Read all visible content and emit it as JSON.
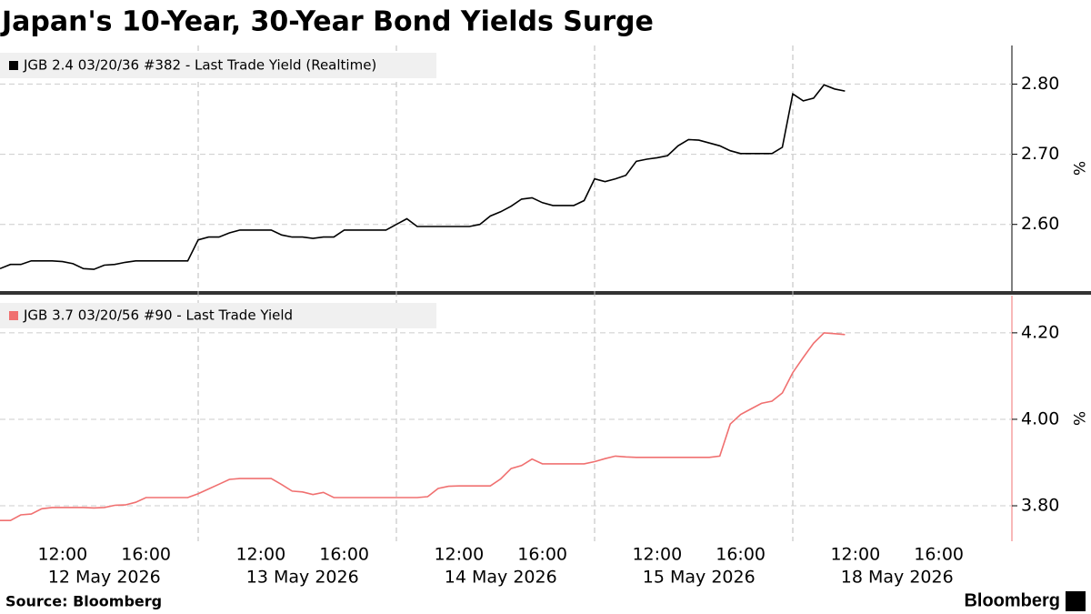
{
  "chart_data": {
    "type": "line",
    "title": "Japan's 10-Year, 30-Year Bond Yields Surge",
    "source": "Source: Bloomberg",
    "brand": "Bloomberg",
    "categories": [
      null,
      null,
      null,
      null,
      null,
      null,
      "12:00",
      null,
      null,
      null,
      null,
      null,
      null,
      null,
      "16:00",
      null,
      null,
      null,
      null,
      null,
      null,
      null,
      null,
      null,
      null,
      "12:00",
      null,
      null,
      null,
      null,
      null,
      null,
      null,
      "16:00",
      null,
      null,
      null,
      null,
      null,
      null,
      null,
      null,
      null,
      null,
      "12:00",
      null,
      null,
      null,
      null,
      null,
      null,
      null,
      "16:00",
      null,
      null,
      null,
      null,
      null,
      null,
      null,
      null,
      null,
      null,
      "12:00",
      null,
      null,
      null,
      null,
      null,
      null,
      null,
      "16:00",
      null,
      null,
      null,
      null,
      null,
      null,
      null,
      null,
      null,
      null,
      "12:00",
      null,
      null,
      null,
      null,
      null,
      null,
      null,
      "16:00",
      null,
      null,
      null,
      null,
      null,
      null,
      null
    ],
    "dates": [
      null,
      null,
      null,
      null,
      null,
      null,
      null,
      null,
      null,
      null,
      "12 May 2026",
      null,
      null,
      null,
      null,
      null,
      null,
      null,
      null,
      null,
      null,
      null,
      null,
      null,
      null,
      null,
      null,
      null,
      null,
      "13 May 2026",
      null,
      null,
      null,
      null,
      null,
      null,
      null,
      null,
      null,
      null,
      null,
      null,
      null,
      null,
      null,
      null,
      null,
      null,
      "14 May 2026",
      null,
      null,
      null,
      null,
      null,
      null,
      null,
      null,
      null,
      null,
      null,
      null,
      null,
      null,
      null,
      null,
      null,
      null,
      "15 May 2026",
      null,
      null,
      null,
      null,
      null,
      null,
      null,
      null,
      null,
      null,
      null,
      null,
      null,
      null,
      null,
      null,
      null,
      null,
      "18 May 2026",
      null,
      null,
      null,
      null,
      null,
      null,
      null,
      null,
      null,
      null,
      null
    ],
    "grid": true,
    "panels": [
      {
        "axis_label": "%",
        "ylim": [
          2.505,
          2.855
        ],
        "yticks": [
          {
            "value": 2.6,
            "label": "2.60"
          },
          {
            "value": 2.7,
            "label": "2.70"
          },
          {
            "value": 2.8,
            "label": "2.80"
          }
        ],
        "series": [
          {
            "name": "JGB 2.4 03/20/36 #382 - Last Trade Yield (Realtime)",
            "color": "#000000",
            "values": [
              2.537,
              2.543,
              2.543,
              2.548,
              2.548,
              2.548,
              2.547,
              2.544,
              2.537,
              2.536,
              2.542,
              2.543,
              2.546,
              2.548,
              2.548,
              2.548,
              2.548,
              2.548,
              2.548,
              2.578,
              2.582,
              2.582,
              2.588,
              2.592,
              2.592,
              2.592,
              2.592,
              2.585,
              2.582,
              2.582,
              2.58,
              2.582,
              2.582,
              2.592,
              2.592,
              2.592,
              2.592,
              2.592,
              2.6,
              2.608,
              2.597,
              2.597,
              2.597,
              2.597,
              2.597,
              2.597,
              2.6,
              2.612,
              2.618,
              2.626,
              2.636,
              2.638,
              2.631,
              2.627,
              2.627,
              2.627,
              2.634,
              2.665,
              2.661,
              2.665,
              2.67,
              2.69,
              2.693,
              2.695,
              2.698,
              2.712,
              2.721,
              2.72,
              2.716,
              2.712,
              2.705,
              2.701,
              2.701,
              2.701,
              2.701,
              2.71,
              2.786,
              2.776,
              2.78,
              2.799,
              2.793,
              2.79,
              null,
              null,
              null,
              null,
              null,
              null,
              null,
              null,
              null,
              null,
              null,
              null,
              null,
              null,
              null,
              null
            ]
          }
        ]
      },
      {
        "axis_label": "%",
        "ylim": [
          3.718,
          4.286
        ],
        "yticks": [
          {
            "value": 3.8,
            "label": "3.80"
          },
          {
            "value": 4.0,
            "label": "4.00"
          },
          {
            "value": 4.2,
            "label": "4.20"
          }
        ],
        "series": [
          {
            "name": "JGB 3.7 03/20/56 #90 - Last Trade Yield",
            "color": "#f07070",
            "values": [
              3.766,
              3.766,
              3.779,
              3.781,
              3.793,
              3.796,
              3.796,
              3.796,
              3.796,
              3.795,
              3.796,
              3.801,
              3.802,
              3.808,
              3.819,
              3.819,
              3.819,
              3.819,
              3.819,
              3.828,
              3.839,
              3.85,
              3.861,
              3.863,
              3.863,
              3.863,
              3.863,
              3.849,
              3.834,
              3.832,
              3.826,
              3.831,
              3.819,
              3.819,
              3.819,
              3.819,
              3.819,
              3.819,
              3.819,
              3.819,
              3.819,
              3.821,
              3.84,
              3.845,
              3.846,
              3.846,
              3.846,
              3.846,
              3.862,
              3.886,
              3.893,
              3.908,
              3.897,
              3.897,
              3.897,
              3.897,
              3.897,
              3.902,
              3.909,
              3.915,
              3.913,
              3.912,
              3.912,
              3.912,
              3.912,
              3.912,
              3.912,
              3.912,
              3.912,
              3.915,
              3.989,
              4.011,
              4.024,
              4.037,
              4.042,
              4.061,
              4.108,
              4.143,
              4.176,
              4.2,
              4.198,
              4.196,
              null,
              null,
              null,
              null,
              null,
              null,
              null,
              null,
              null,
              null,
              null,
              null,
              null,
              null,
              null,
              null
            ]
          }
        ]
      }
    ]
  }
}
